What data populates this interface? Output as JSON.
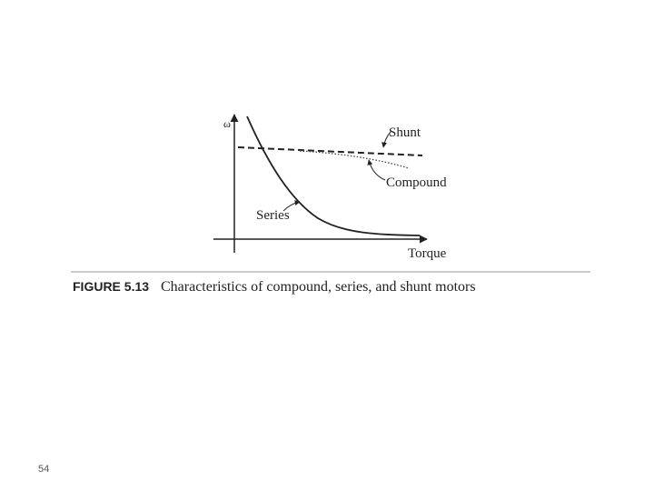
{
  "figure": {
    "y_axis_label": "ω",
    "x_axis_label": "Torque",
    "curves": [
      {
        "label": "Shunt"
      },
      {
        "label": "Compound"
      },
      {
        "label": "Series"
      }
    ],
    "caption": {
      "number": "FIGURE 5.13",
      "text": "Characteristics of compound, series, and shunt motors"
    }
  },
  "page_number": "54"
}
